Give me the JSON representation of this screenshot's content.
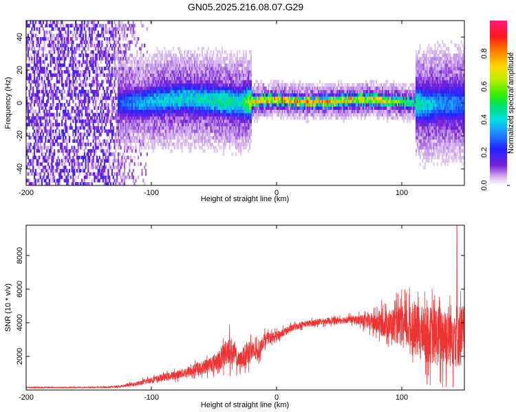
{
  "title": "GN05.2025.216.08.07.G29",
  "chart_data": [
    {
      "type": "heatmap",
      "xlabel": "Height of straight line (km)",
      "ylabel": "Frequency (Hz)",
      "xlim": [
        -200,
        150
      ],
      "ylim": [
        -50,
        50
      ],
      "x_ticks": [
        -200,
        -100,
        0,
        100
      ],
      "y_ticks": [
        -40,
        -20,
        0,
        20,
        40
      ],
      "colorbar": {
        "label": "Normalized spectral amplitude",
        "range": [
          0,
          1
        ],
        "ticks": [
          0.0,
          0.2,
          0.4,
          0.6,
          0.8
        ],
        "tick_labels": [
          "0.0",
          "0.2",
          "0.4",
          "0.6",
          "0.8"
        ]
      },
      "ridge": {
        "description_points_x": [
          -125,
          -110,
          -90,
          -70,
          -55,
          -40,
          -30,
          -20,
          -10,
          0,
          20,
          40,
          60,
          80,
          100,
          110,
          120,
          130,
          150
        ],
        "center_freq": [
          0,
          0,
          2,
          3,
          2,
          1,
          0,
          1,
          2,
          2,
          1,
          1,
          2,
          2,
          1,
          0,
          -1,
          0,
          0
        ],
        "peak_amplitude": [
          0.3,
          0.4,
          0.45,
          0.5,
          0.5,
          0.55,
          0.5,
          0.8,
          0.9,
          0.95,
          0.95,
          0.95,
          0.9,
          0.85,
          0.7,
          0.55,
          0.45,
          0.4,
          0.35
        ]
      },
      "noise_region_x": [
        -200,
        -100
      ]
    },
    {
      "type": "line",
      "xlabel": "Height of straight line (km)",
      "ylabel": "SNR (10 * v/v)",
      "xlim": [
        -200,
        150
      ],
      "ylim": [
        0,
        9800
      ],
      "x_ticks": [
        -200,
        -100,
        0,
        100
      ],
      "y_ticks": [
        2000,
        4000,
        6000,
        8000
      ],
      "series": [
        {
          "color": "#ee3333",
          "envelope_x": [
            -200,
            -150,
            -125,
            -110,
            -100,
            -80,
            -60,
            -45,
            -38,
            -30,
            -22,
            -15,
            -10,
            0,
            10,
            20,
            40,
            60,
            70,
            80,
            90,
            100,
            110,
            120,
            130,
            140,
            150
          ],
          "envelope_mean": [
            150,
            150,
            200,
            400,
            600,
            900,
            1300,
            1800,
            2500,
            1700,
            2300,
            2200,
            3000,
            3200,
            3600,
            3900,
            4100,
            4200,
            4100,
            4000,
            3900,
            3800,
            3600,
            3300,
            3200,
            3300,
            3200
          ],
          "envelope_spread": [
            60,
            60,
            100,
            250,
            350,
            450,
            700,
            1100,
            1700,
            900,
            1400,
            900,
            700,
            500,
            400,
            350,
            350,
            400,
            700,
            1200,
            1700,
            2200,
            2700,
            3000,
            3400,
            3500,
            3500
          ],
          "peak_x": 144,
          "peak_y": 9800
        }
      ]
    }
  ]
}
